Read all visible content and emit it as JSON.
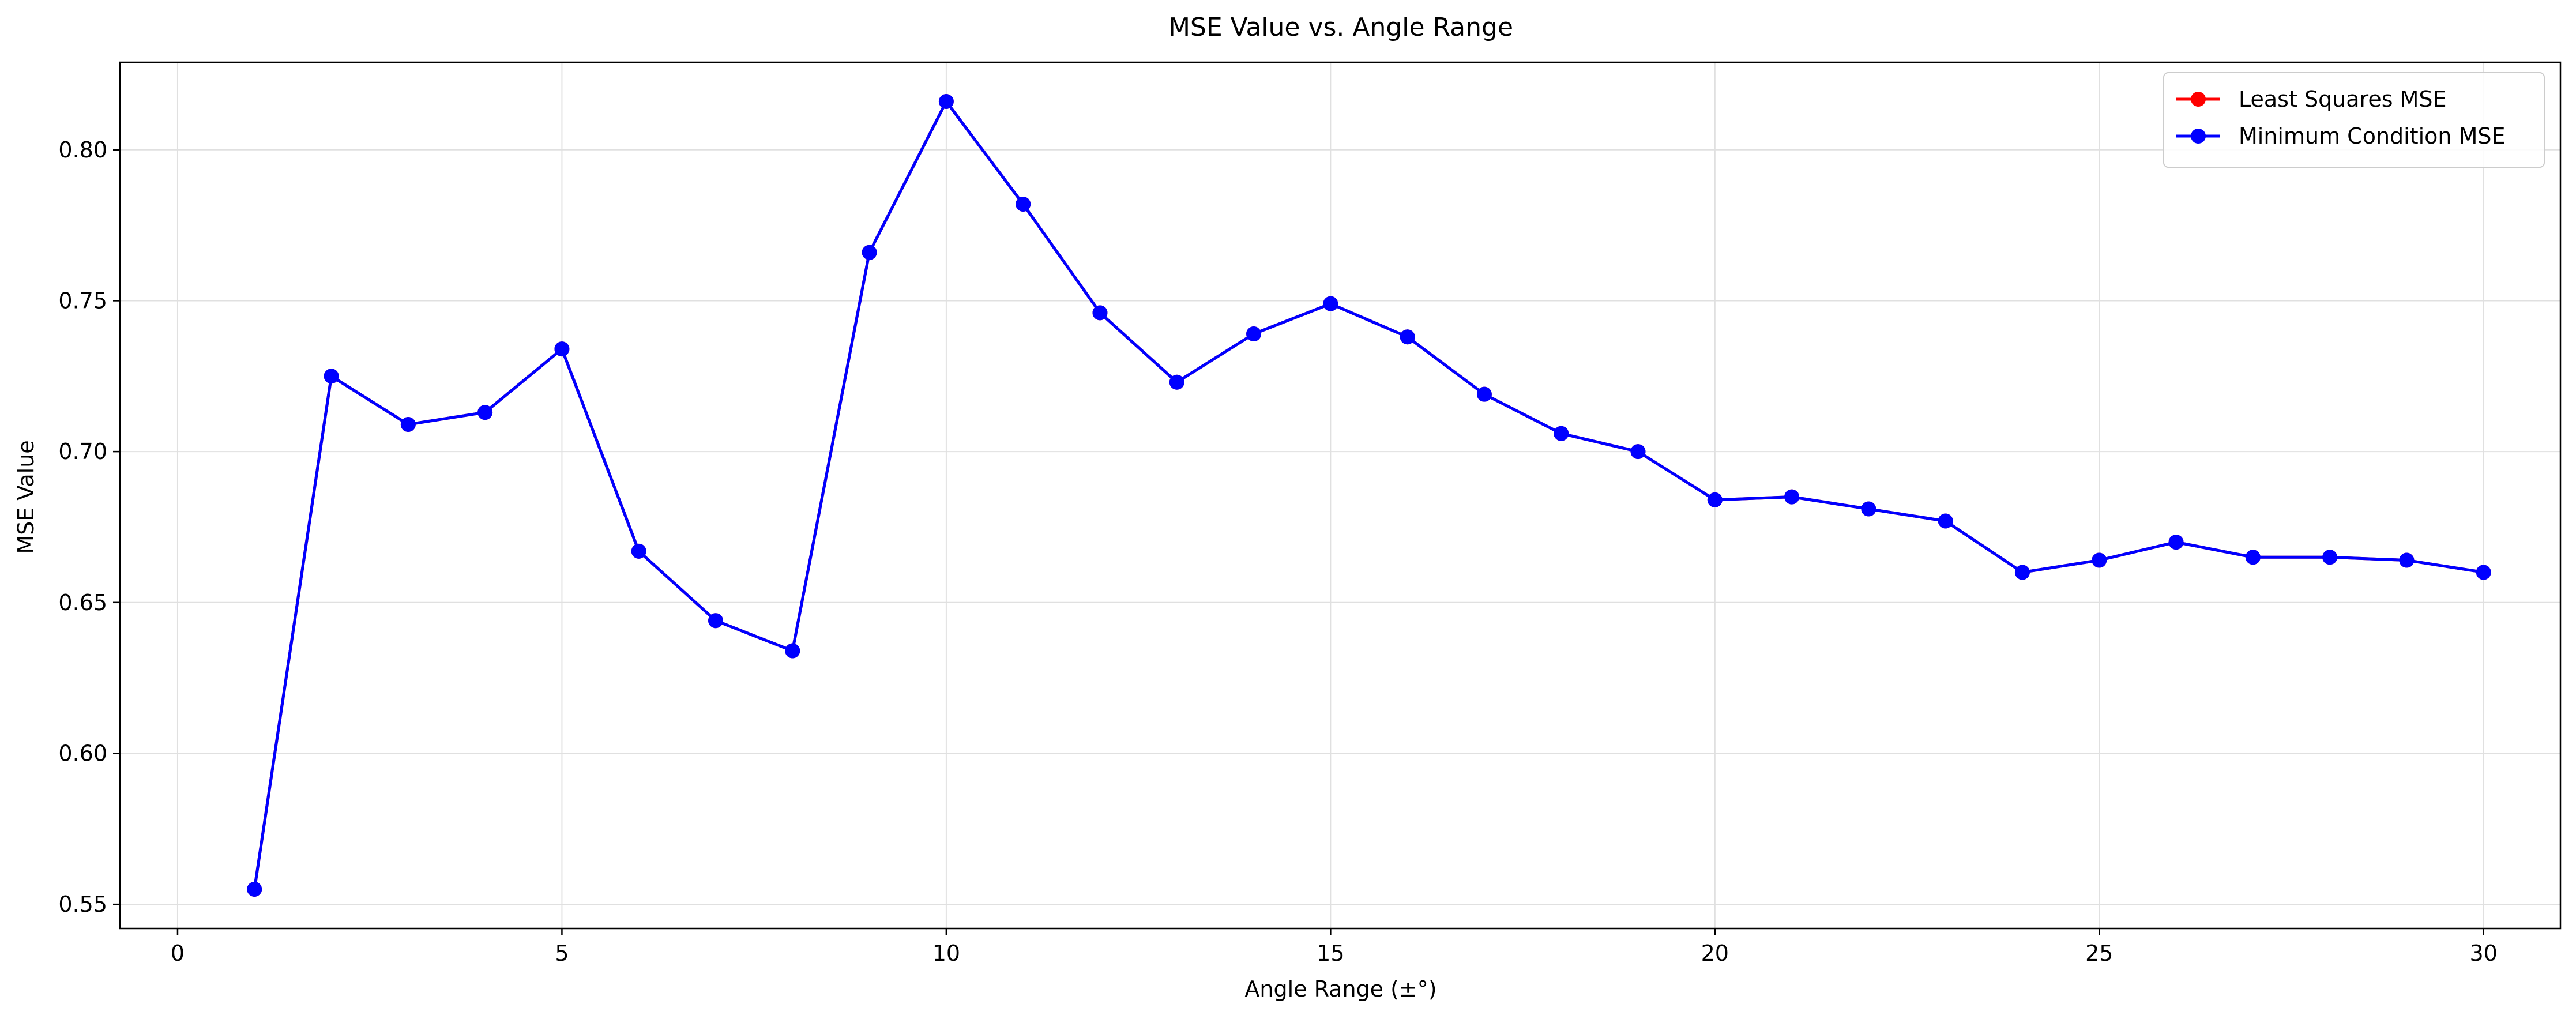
{
  "chart_data": {
    "type": "line",
    "title": "MSE Value vs. Angle Range",
    "xlabel": "Angle Range (±°)",
    "ylabel": "MSE Value",
    "xlim": [
      -0.75,
      31.0
    ],
    "ylim": [
      0.542,
      0.829
    ],
    "xticks": [
      0,
      5,
      10,
      15,
      20,
      25,
      30
    ],
    "xtick_labels": [
      "0",
      "5",
      "10",
      "15",
      "20",
      "25",
      "30"
    ],
    "yticks": [
      0.55,
      0.6,
      0.65,
      0.7,
      0.75,
      0.8
    ],
    "ytick_labels": [
      "0.55",
      "0.60",
      "0.65",
      "0.70",
      "0.75",
      "0.80"
    ],
    "grid": true,
    "legend_position": "top-right",
    "x": [
      1,
      2,
      3,
      4,
      5,
      6,
      7,
      8,
      9,
      10,
      11,
      12,
      13,
      14,
      15,
      16,
      17,
      18,
      19,
      20,
      21,
      22,
      23,
      24,
      25,
      26,
      27,
      28,
      29,
      30
    ],
    "series": [
      {
        "name": "Least Squares MSE",
        "color": "#ff0000",
        "marker": "circle",
        "values": [
          0.555,
          0.725,
          0.709,
          0.713,
          0.734,
          0.667,
          0.644,
          0.634,
          0.766,
          0.816,
          0.782,
          0.746,
          0.723,
          0.739,
          0.749,
          0.738,
          0.719,
          0.706,
          0.7,
          0.684,
          0.685,
          0.681,
          0.677,
          0.66,
          0.664,
          0.67,
          0.665,
          0.665,
          0.664,
          0.66
        ]
      },
      {
        "name": "Minimum Condition MSE",
        "color": "#0000ff",
        "marker": "circle",
        "values": [
          0.555,
          0.725,
          0.709,
          0.713,
          0.734,
          0.667,
          0.644,
          0.634,
          0.766,
          0.816,
          0.782,
          0.746,
          0.723,
          0.739,
          0.749,
          0.738,
          0.719,
          0.706,
          0.7,
          0.684,
          0.685,
          0.681,
          0.677,
          0.66,
          0.664,
          0.67,
          0.665,
          0.665,
          0.664,
          0.66
        ]
      }
    ]
  }
}
